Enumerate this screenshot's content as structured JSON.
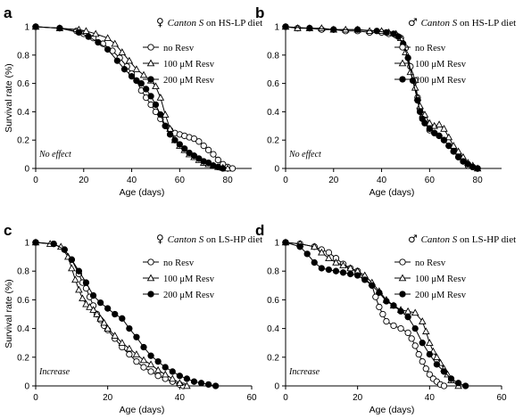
{
  "chart_data": [
    {
      "type": "line",
      "panel_label": "a",
      "title_symbol": "♀",
      "title_strain": "Canton S",
      "title_rest": " on HS-LP diet",
      "xlabel": "Age (days)",
      "ylabel": "Survival rate (%)",
      "xlim": [
        0,
        90
      ],
      "ylim": [
        0,
        1
      ],
      "xticks": [
        "0",
        "20",
        "40",
        "60",
        "80"
      ],
      "yticks": [
        "0",
        "0.2",
        "0.4",
        "0.6",
        "0.8",
        "1"
      ],
      "annotation": "No effect",
      "series": [
        {
          "name": "no Resv",
          "marker": "open-circle",
          "x": [
            0,
            10,
            17,
            20,
            24,
            28,
            32,
            35,
            38,
            40,
            42,
            44,
            46,
            48,
            50,
            52,
            54,
            56,
            58,
            60,
            62,
            64,
            66,
            68,
            70,
            72,
            74,
            76,
            78,
            80,
            82
          ],
          "y": [
            1.0,
            0.99,
            0.97,
            0.95,
            0.92,
            0.88,
            0.83,
            0.78,
            0.72,
            0.67,
            0.62,
            0.55,
            0.5,
            0.45,
            0.4,
            0.35,
            0.3,
            0.27,
            0.25,
            0.24,
            0.23,
            0.22,
            0.21,
            0.19,
            0.16,
            0.13,
            0.1,
            0.06,
            0.03,
            0.01,
            0.0
          ]
        },
        {
          "name": "100 μM Resv",
          "marker": "open-triangle",
          "x": [
            0,
            10,
            18,
            21,
            25,
            30,
            33,
            36,
            39,
            42,
            45,
            48,
            50,
            52,
            54,
            56,
            58,
            60,
            62,
            64,
            66,
            68,
            70,
            72,
            74,
            76,
            78,
            80
          ],
          "y": [
            1.0,
            0.99,
            0.98,
            0.97,
            0.95,
            0.92,
            0.88,
            0.82,
            0.76,
            0.7,
            0.66,
            0.62,
            0.58,
            0.5,
            0.38,
            0.28,
            0.2,
            0.16,
            0.13,
            0.1,
            0.08,
            0.06,
            0.04,
            0.03,
            0.02,
            0.01,
            0.005,
            0.0
          ]
        },
        {
          "name": "200 μM Resv",
          "marker": "filled-circle",
          "x": [
            0,
            10,
            18,
            22,
            26,
            30,
            34,
            37,
            40,
            42,
            44,
            46,
            48,
            50,
            52,
            54,
            56,
            58,
            60,
            62,
            64,
            66,
            68,
            70,
            72,
            74,
            76,
            78
          ],
          "y": [
            1.0,
            0.99,
            0.96,
            0.93,
            0.89,
            0.84,
            0.76,
            0.7,
            0.65,
            0.62,
            0.6,
            0.56,
            0.51,
            0.45,
            0.38,
            0.3,
            0.24,
            0.2,
            0.17,
            0.14,
            0.11,
            0.09,
            0.07,
            0.05,
            0.04,
            0.02,
            0.01,
            0.0
          ]
        }
      ]
    },
    {
      "type": "line",
      "panel_label": "b",
      "title_symbol": "♂",
      "title_strain": "Canton S",
      "title_rest": " on HS-LP diet",
      "xlabel": "Age (days)",
      "ylabel": "",
      "xlim": [
        0,
        90
      ],
      "ylim": [
        0,
        1
      ],
      "xticks": [
        "0",
        "20",
        "40",
        "60",
        "80"
      ],
      "yticks": [
        "0",
        "0.2",
        "0.4",
        "0.6",
        "0.8",
        "1"
      ],
      "annotation": "No effect",
      "series": [
        {
          "name": "no Resv",
          "marker": "open-circle",
          "x": [
            0,
            5,
            10,
            15,
            20,
            25,
            30,
            35,
            40,
            43,
            46,
            48,
            50,
            52,
            54,
            55,
            56,
            57,
            58,
            60,
            62,
            64,
            66,
            68,
            70,
            72,
            74,
            76,
            78,
            80
          ],
          "y": [
            1.0,
            0.99,
            0.99,
            0.98,
            0.98,
            0.97,
            0.97,
            0.96,
            0.96,
            0.95,
            0.94,
            0.92,
            0.85,
            0.72,
            0.62,
            0.5,
            0.42,
            0.36,
            0.32,
            0.27,
            0.25,
            0.23,
            0.2,
            0.16,
            0.12,
            0.08,
            0.05,
            0.02,
            0.01,
            0.0
          ]
        },
        {
          "name": "100 μM Resv",
          "marker": "open-triangle",
          "x": [
            0,
            5,
            10,
            15,
            20,
            25,
            30,
            35,
            40,
            43,
            46,
            48,
            50,
            52,
            54,
            55,
            56,
            58,
            60,
            62,
            64,
            66,
            68,
            70,
            72,
            74,
            76,
            78,
            80
          ],
          "y": [
            1.0,
            0.99,
            0.99,
            0.99,
            0.98,
            0.98,
            0.98,
            0.97,
            0.97,
            0.96,
            0.95,
            0.92,
            0.82,
            0.68,
            0.57,
            0.5,
            0.44,
            0.38,
            0.32,
            0.3,
            0.31,
            0.28,
            0.22,
            0.16,
            0.12,
            0.08,
            0.04,
            0.02,
            0.0
          ]
        },
        {
          "name": "200 μM Resv",
          "marker": "filled-circle",
          "x": [
            0,
            10,
            20,
            30,
            38,
            42,
            45,
            47,
            49,
            51,
            53,
            55,
            56,
            57,
            58,
            60,
            62,
            64,
            66,
            68,
            70,
            72,
            74,
            76,
            78,
            80
          ],
          "y": [
            1.0,
            0.99,
            0.98,
            0.98,
            0.97,
            0.96,
            0.95,
            0.93,
            0.88,
            0.78,
            0.62,
            0.48,
            0.4,
            0.35,
            0.32,
            0.28,
            0.25,
            0.23,
            0.2,
            0.16,
            0.12,
            0.08,
            0.05,
            0.03,
            0.01,
            0.0
          ]
        }
      ]
    },
    {
      "type": "line",
      "panel_label": "c",
      "title_symbol": "♀",
      "title_strain": "Canton S",
      "title_rest": " on LS-HP diet",
      "xlabel": "Age (days)",
      "ylabel": "Survival rate (%)",
      "xlim": [
        0,
        60
      ],
      "ylim": [
        0,
        1
      ],
      "xticks": [
        "0",
        "20",
        "40",
        "60"
      ],
      "yticks": [
        "0",
        "0.2",
        "0.4",
        "0.6",
        "0.8",
        "1"
      ],
      "annotation": "Increase",
      "series": [
        {
          "name": "no Resv",
          "marker": "open-circle",
          "x": [
            0,
            5,
            8,
            10,
            12,
            13,
            14,
            15,
            16,
            17,
            18,
            19,
            20,
            22,
            24,
            26,
            28,
            30,
            32,
            34,
            36,
            38,
            40,
            41
          ],
          "y": [
            1.0,
            0.99,
            0.95,
            0.88,
            0.78,
            0.72,
            0.68,
            0.62,
            0.56,
            0.5,
            0.46,
            0.42,
            0.39,
            0.33,
            0.27,
            0.22,
            0.17,
            0.13,
            0.1,
            0.07,
            0.05,
            0.03,
            0.01,
            0.0
          ]
        },
        {
          "name": "100 μM Resv",
          "marker": "open-triangle",
          "x": [
            0,
            4,
            7,
            9,
            10,
            11,
            12,
            13,
            14,
            15,
            16,
            17,
            18,
            19,
            20,
            22,
            24,
            26,
            28,
            30,
            32,
            34,
            36,
            38,
            40,
            42
          ],
          "y": [
            1.0,
            0.99,
            0.97,
            0.9,
            0.82,
            0.74,
            0.67,
            0.61,
            0.57,
            0.55,
            0.53,
            0.5,
            0.47,
            0.44,
            0.4,
            0.35,
            0.3,
            0.26,
            0.22,
            0.18,
            0.15,
            0.11,
            0.08,
            0.05,
            0.02,
            0.0
          ]
        },
        {
          "name": "200 μM Resv",
          "marker": "filled-circle",
          "x": [
            0,
            5,
            8,
            10,
            12,
            14,
            16,
            18,
            20,
            22,
            24,
            26,
            28,
            30,
            32,
            34,
            36,
            38,
            40,
            42,
            44,
            46,
            48,
            50
          ],
          "y": [
            1.0,
            0.99,
            0.95,
            0.88,
            0.8,
            0.72,
            0.63,
            0.58,
            0.54,
            0.5,
            0.47,
            0.4,
            0.34,
            0.27,
            0.21,
            0.17,
            0.13,
            0.1,
            0.07,
            0.05,
            0.03,
            0.02,
            0.01,
            0.0
          ]
        }
      ]
    },
    {
      "type": "line",
      "panel_label": "d",
      "title_symbol": "♂",
      "title_strain": "Canton S",
      "title_rest": " on LS-HP diet",
      "xlabel": "Age (days)",
      "ylabel": "",
      "xlim": [
        0,
        60
      ],
      "ylim": [
        0,
        1
      ],
      "xticks": [
        "0",
        "20",
        "40",
        "60"
      ],
      "yticks": [
        "0",
        "0.2",
        "0.4",
        "0.6",
        "0.8",
        "1"
      ],
      "annotation": "Increase",
      "series": [
        {
          "name": "no Resv",
          "marker": "open-circle",
          "x": [
            0,
            4,
            8,
            10,
            12,
            14,
            16,
            18,
            20,
            22,
            24,
            25,
            26,
            27,
            28,
            30,
            32,
            34,
            35,
            36,
            37,
            38,
            39,
            40,
            41,
            42,
            43,
            44
          ],
          "y": [
            1.0,
            0.99,
            0.97,
            0.95,
            0.93,
            0.89,
            0.85,
            0.82,
            0.8,
            0.75,
            0.7,
            0.62,
            0.55,
            0.5,
            0.45,
            0.42,
            0.4,
            0.37,
            0.33,
            0.28,
            0.22,
            0.17,
            0.12,
            0.08,
            0.05,
            0.03,
            0.01,
            0.0
          ]
        },
        {
          "name": "100 μM Resv",
          "marker": "open-triangle",
          "x": [
            0,
            4,
            8,
            10,
            12,
            14,
            16,
            18,
            20,
            22,
            24,
            26,
            28,
            30,
            32,
            34,
            36,
            38,
            39,
            40,
            41,
            42,
            43,
            44,
            45,
            46,
            48
          ],
          "y": [
            1.0,
            0.99,
            0.97,
            0.93,
            0.89,
            0.86,
            0.84,
            0.82,
            0.8,
            0.77,
            0.72,
            0.66,
            0.6,
            0.56,
            0.53,
            0.52,
            0.51,
            0.45,
            0.38,
            0.3,
            0.24,
            0.2,
            0.16,
            0.12,
            0.08,
            0.04,
            0.0
          ]
        },
        {
          "name": "200 μM Resv",
          "marker": "filled-circle",
          "x": [
            0,
            4,
            6,
            8,
            10,
            12,
            14,
            16,
            18,
            20,
            22,
            24,
            26,
            28,
            30,
            32,
            34,
            36,
            38,
            40,
            42,
            44,
            46,
            48,
            50
          ],
          "y": [
            1.0,
            0.97,
            0.92,
            0.86,
            0.82,
            0.81,
            0.8,
            0.79,
            0.78,
            0.77,
            0.74,
            0.7,
            0.65,
            0.59,
            0.56,
            0.52,
            0.48,
            0.4,
            0.3,
            0.22,
            0.15,
            0.1,
            0.05,
            0.02,
            0.0
          ]
        }
      ]
    }
  ]
}
